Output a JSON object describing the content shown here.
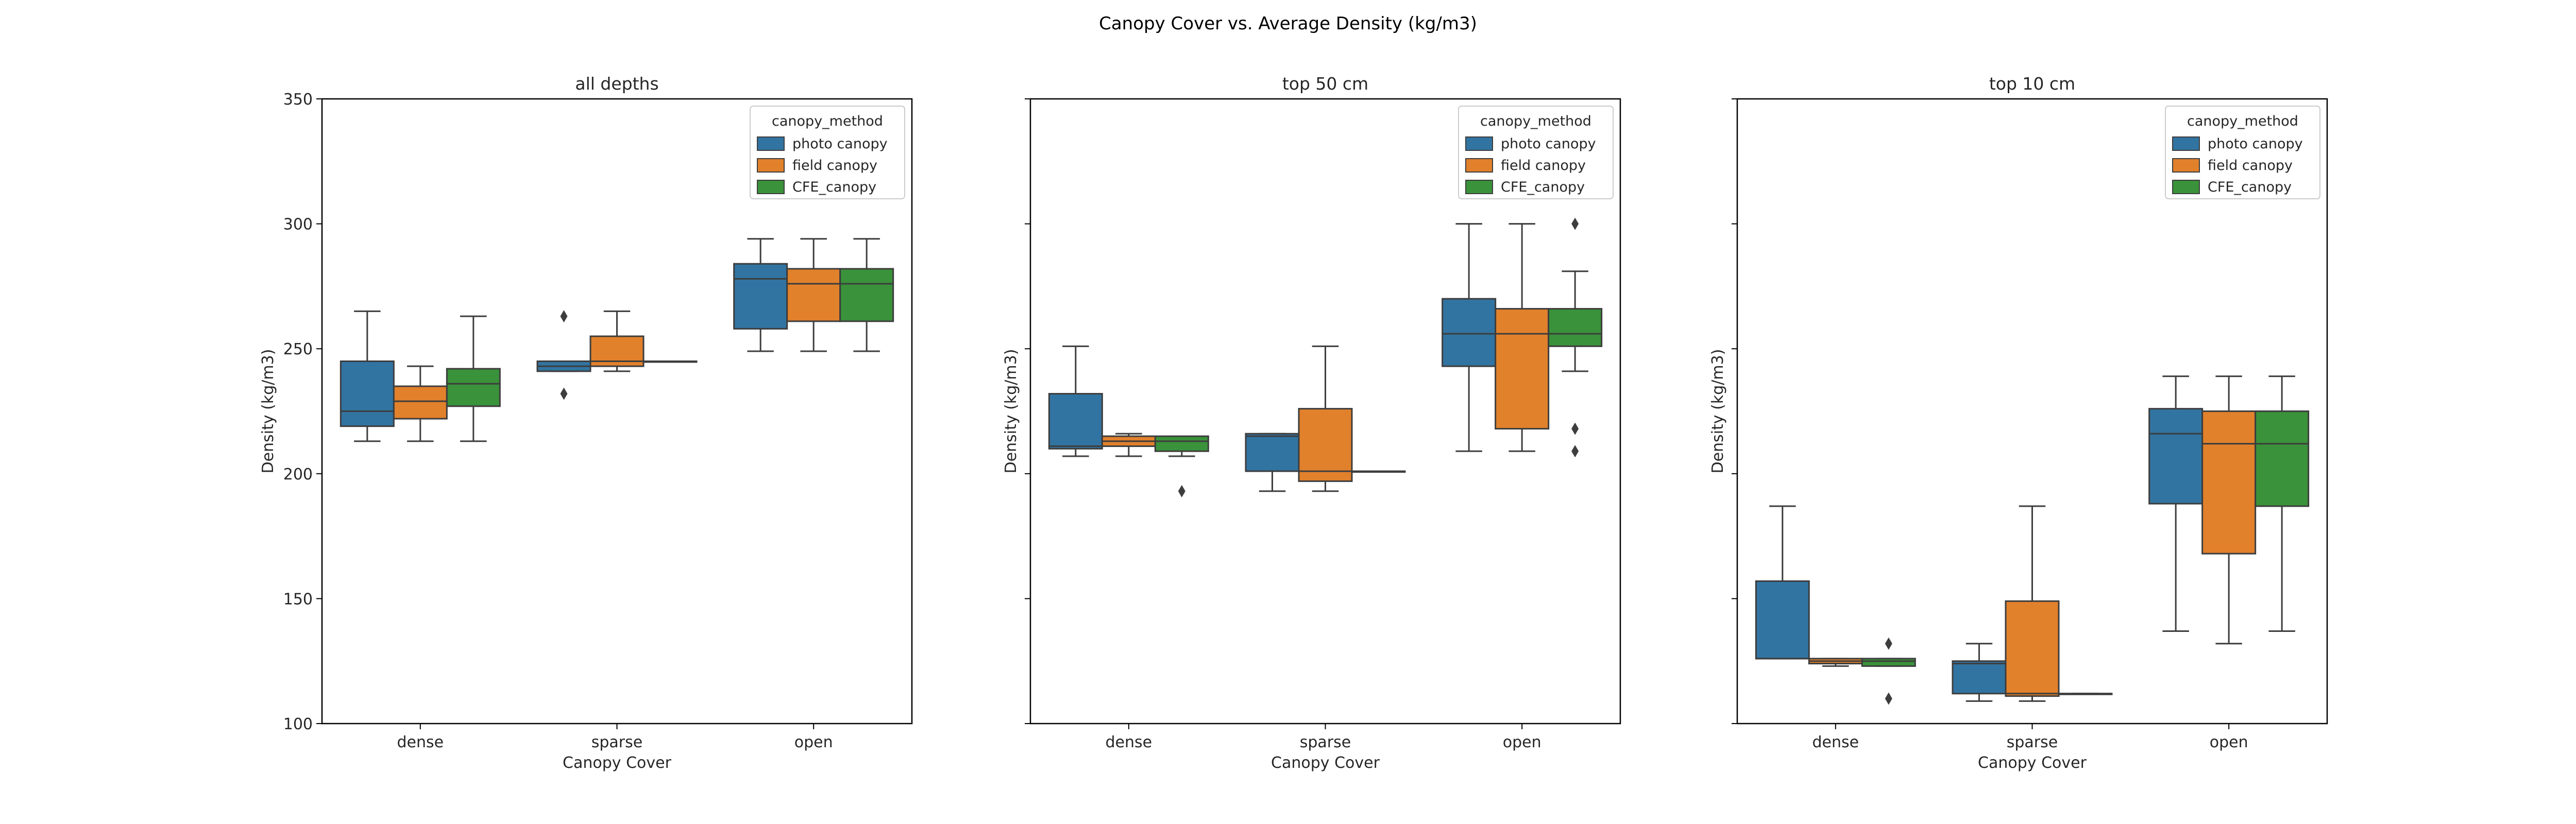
{
  "figure": {
    "title": "Canopy Cover vs. Average Density (kg/m3)"
  },
  "chart_data": [
    {
      "type": "box",
      "title": "all depths",
      "xlabel": "Canopy Cover",
      "ylabel": "Density (kg/m3)",
      "ylim": [
        100,
        350
      ],
      "yticks": [
        100,
        150,
        200,
        250,
        300,
        350
      ],
      "show_ytick_labels": true,
      "categories": [
        "dense",
        "sparse",
        "open"
      ],
      "legend": {
        "title": "canopy_method",
        "placement": "top-right"
      },
      "series": [
        {
          "name": "photo canopy",
          "color": "#3274a1",
          "boxes": [
            {
              "whislo": 213,
              "q1": 219,
              "med": 225,
              "q3": 245,
              "whishi": 265,
              "fliers": []
            },
            {
              "whislo": 241,
              "q1": 241,
              "med": 243,
              "q3": 245,
              "whishi": 245,
              "fliers": [
                232,
                263
              ]
            },
            {
              "whislo": 249,
              "q1": 258,
              "med": 278,
              "q3": 284,
              "whishi": 294,
              "fliers": []
            }
          ]
        },
        {
          "name": "field canopy",
          "color": "#e1812c",
          "boxes": [
            {
              "whislo": 213,
              "q1": 222,
              "med": 229,
              "q3": 235,
              "whishi": 243,
              "fliers": []
            },
            {
              "whislo": 241,
              "q1": 243,
              "med": 245,
              "q3": 255,
              "whishi": 265,
              "fliers": []
            },
            {
              "whislo": 249,
              "q1": 261,
              "med": 276,
              "q3": 282,
              "whishi": 294,
              "fliers": []
            }
          ]
        },
        {
          "name": "CFE_canopy",
          "color": "#3a923a",
          "boxes": [
            {
              "whislo": 213,
              "q1": 227,
              "med": 236,
              "q3": 242,
              "whishi": 263,
              "fliers": []
            },
            {
              "whislo": 245,
              "q1": 245,
              "med": 245,
              "q3": 245,
              "whishi": 245,
              "fliers": []
            },
            {
              "whislo": 249,
              "q1": 261,
              "med": 276,
              "q3": 282,
              "whishi": 294,
              "fliers": []
            }
          ]
        }
      ]
    },
    {
      "type": "box",
      "title": "top 50 cm",
      "xlabel": "Canopy Cover",
      "ylabel": "Density (kg/m3)",
      "ylim": [
        100,
        350
      ],
      "yticks": [
        100,
        150,
        200,
        250,
        300,
        350
      ],
      "show_ytick_labels": false,
      "categories": [
        "dense",
        "sparse",
        "open"
      ],
      "legend": {
        "title": "canopy_method",
        "placement": "top-right"
      },
      "series": [
        {
          "name": "photo canopy",
          "color": "#3274a1",
          "boxes": [
            {
              "whislo": 207,
              "q1": 210,
              "med": 211,
              "q3": 232,
              "whishi": 251,
              "fliers": []
            },
            {
              "whislo": 193,
              "q1": 201,
              "med": 215,
              "q3": 216,
              "whishi": 216,
              "fliers": []
            },
            {
              "whislo": 209,
              "q1": 243,
              "med": 256,
              "q3": 270,
              "whishi": 300,
              "fliers": []
            }
          ]
        },
        {
          "name": "field canopy",
          "color": "#e1812c",
          "boxes": [
            {
              "whislo": 207,
              "q1": 211,
              "med": 213,
              "q3": 215,
              "whishi": 216,
              "fliers": []
            },
            {
              "whislo": 193,
              "q1": 197,
              "med": 201,
              "q3": 226,
              "whishi": 251,
              "fliers": []
            },
            {
              "whislo": 209,
              "q1": 218,
              "med": 256,
              "q3": 266,
              "whishi": 300,
              "fliers": []
            }
          ]
        },
        {
          "name": "CFE_canopy",
          "color": "#3a923a",
          "boxes": [
            {
              "whislo": 207,
              "q1": 209,
              "med": 213,
              "q3": 215,
              "whishi": 215,
              "fliers": [
                193
              ]
            },
            {
              "whislo": 201,
              "q1": 201,
              "med": 201,
              "q3": 201,
              "whishi": 201,
              "fliers": []
            },
            {
              "whislo": 241,
              "q1": 251,
              "med": 256,
              "q3": 266,
              "whishi": 281,
              "fliers": [
                209,
                218,
                300
              ]
            }
          ]
        }
      ]
    },
    {
      "type": "box",
      "title": "top 10 cm",
      "xlabel": "Canopy Cover",
      "ylabel": "Density (kg/m3)",
      "ylim": [
        100,
        350
      ],
      "yticks": [
        100,
        150,
        200,
        250,
        300,
        350
      ],
      "show_ytick_labels": false,
      "categories": [
        "dense",
        "sparse",
        "open"
      ],
      "legend": {
        "title": "canopy_method",
        "placement": "top-right"
      },
      "series": [
        {
          "name": "photo canopy",
          "color": "#3274a1",
          "boxes": [
            {
              "whislo": 126,
              "q1": 126,
              "med": 126,
              "q3": 157,
              "whishi": 187,
              "fliers": []
            },
            {
              "whislo": 109,
              "q1": 112,
              "med": 124,
              "q3": 125,
              "whishi": 132,
              "fliers": []
            },
            {
              "whislo": 137,
              "q1": 188,
              "med": 216,
              "q3": 226,
              "whishi": 239,
              "fliers": []
            }
          ]
        },
        {
          "name": "field canopy",
          "color": "#e1812c",
          "boxes": [
            {
              "whislo": 123,
              "q1": 124,
              "med": 125,
              "q3": 126,
              "whishi": 126,
              "fliers": []
            },
            {
              "whislo": 109,
              "q1": 111,
              "med": 112,
              "q3": 149,
              "whishi": 187,
              "fliers": []
            },
            {
              "whislo": 132,
              "q1": 168,
              "med": 212,
              "q3": 225,
              "whishi": 239,
              "fliers": []
            }
          ]
        },
        {
          "name": "CFE_canopy",
          "color": "#3a923a",
          "boxes": [
            {
              "whislo": 123,
              "q1": 123,
              "med": 125,
              "q3": 126,
              "whishi": 126,
              "fliers": [
                110,
                132
              ]
            },
            {
              "whislo": 112,
              "q1": 112,
              "med": 112,
              "q3": 112,
              "whishi": 112,
              "fliers": []
            },
            {
              "whislo": 137,
              "q1": 187,
              "med": 212,
              "q3": 225,
              "whishi": 239,
              "fliers": []
            }
          ]
        }
      ]
    }
  ]
}
